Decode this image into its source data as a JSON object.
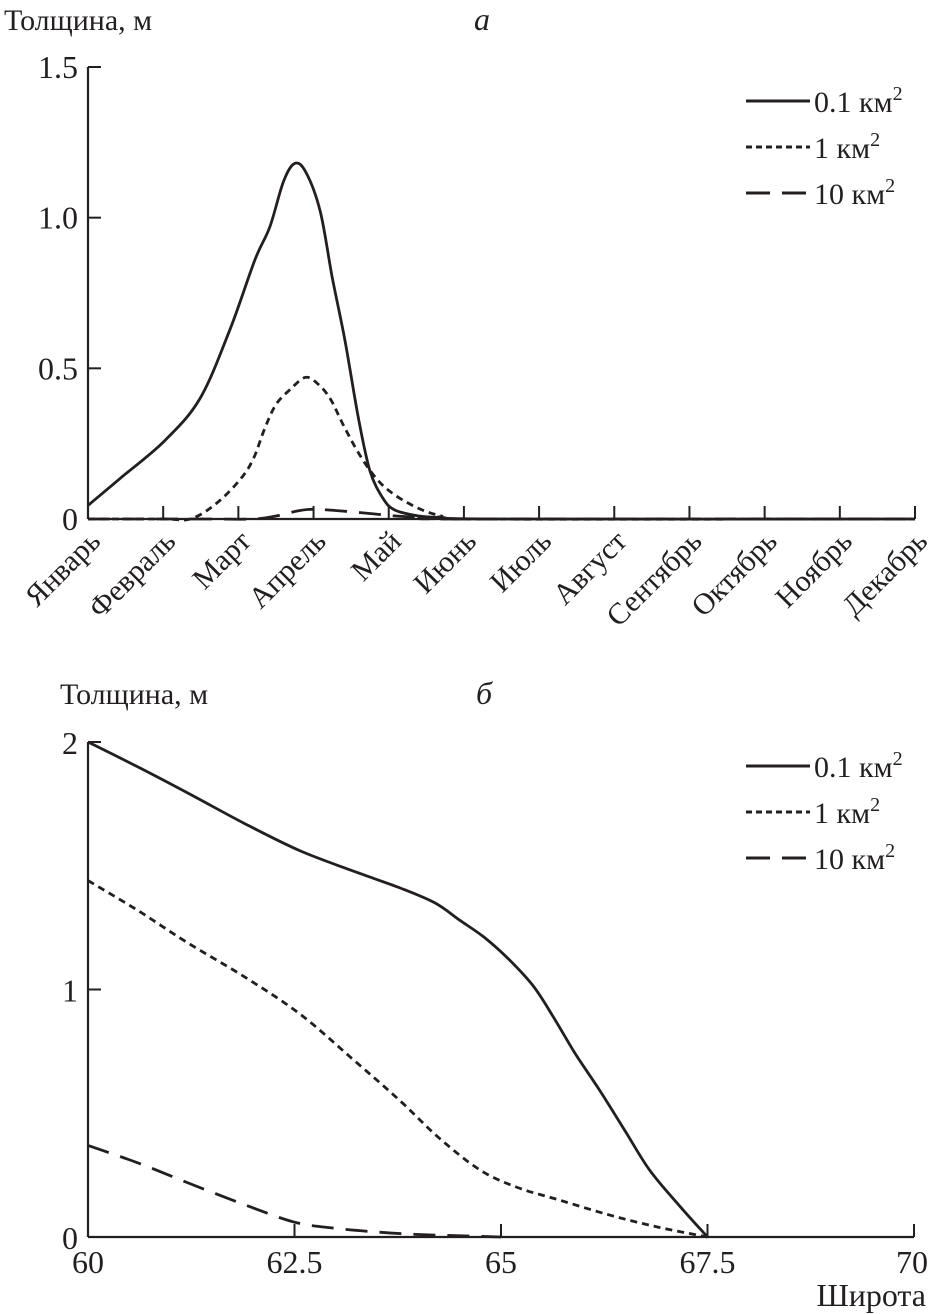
{
  "colors": {
    "ink": "#231f20",
    "background": "#ffffff"
  },
  "chart_data": [
    {
      "panel": "а",
      "type": "line",
      "ylabel": "Толщина, м",
      "xlabel": "",
      "ylim": [
        0,
        1.5
      ],
      "yticks": [
        0,
        0.5,
        1.0,
        1.5
      ],
      "ytick_labels": [
        "0",
        "0.5",
        "1.0",
        "1.5"
      ],
      "categories": [
        "Январь",
        "Февраль",
        "Март",
        "Апрель",
        "Май",
        "Июнь",
        "Июль",
        "Август",
        "Сентябрь",
        "Октябрь",
        "Ноябрь",
        "Декабрь"
      ],
      "x_units": "month index (0 = Январь)",
      "xlim": [
        0,
        11
      ],
      "legend_position": "top-right",
      "series": [
        {
          "name": "0.1 км",
          "superscript": "2",
          "style": "solid",
          "x": [
            0,
            0.43,
            1.02,
            1.49,
            1.89,
            2.22,
            2.42,
            2.6,
            2.75,
            2.9,
            3.09,
            3.25,
            3.42,
            3.6,
            3.75,
            3.92,
            4.08,
            4.4,
            4.7,
            5.5,
            11
          ],
          "y": [
            0.045,
            0.135,
            0.26,
            0.4,
            0.63,
            0.86,
            0.97,
            1.12,
            1.18,
            1.15,
            1.02,
            0.8,
            0.59,
            0.33,
            0.16,
            0.07,
            0.03,
            0.01,
            0.005,
            0,
            0
          ]
        },
        {
          "name": "1 км",
          "superscript": "2",
          "style": "dotted",
          "x": [
            0,
            1.0,
            1.36,
            1.7,
            2.02,
            2.2,
            2.35,
            2.5,
            2.69,
            2.89,
            3.05,
            3.22,
            3.4,
            3.62,
            3.85,
            4.08,
            4.4,
            4.7,
            5.0,
            11
          ],
          "y": [
            0,
            0,
            0,
            0.05,
            0.13,
            0.2,
            0.3,
            0.38,
            0.43,
            0.47,
            0.45,
            0.4,
            0.31,
            0.21,
            0.13,
            0.08,
            0.035,
            0.01,
            0,
            0
          ]
        },
        {
          "name": "10 км",
          "superscript": "2",
          "style": "dashed",
          "x": [
            0,
            1.5,
            2.2,
            2.5,
            2.75,
            2.95,
            3.2,
            3.5,
            3.8,
            4.1,
            4.5,
            5.0,
            11
          ],
          "y": [
            0,
            0,
            0.0,
            0.01,
            0.025,
            0.032,
            0.03,
            0.024,
            0.017,
            0.01,
            0.004,
            0,
            0
          ]
        }
      ]
    },
    {
      "panel": "б",
      "type": "line",
      "ylabel": "Толщина, м",
      "xlabel": "Широта",
      "ylim": [
        0,
        2
      ],
      "yticks": [
        0,
        1,
        2
      ],
      "ytick_labels": [
        "0",
        "1",
        "2"
      ],
      "xlim": [
        60,
        70
      ],
      "xticks": [
        60,
        62.5,
        65,
        67.5,
        70
      ],
      "xtick_labels": [
        "60",
        "62.5",
        "65",
        "67.5",
        "70"
      ],
      "legend_position": "top-right",
      "series": [
        {
          "name": "0.1 км",
          "superscript": "2",
          "style": "solid",
          "x": [
            60,
            60.6,
            61.23,
            61.9,
            62.57,
            63.2,
            63.78,
            64.2,
            64.5,
            64.8,
            65.1,
            65.4,
            65.65,
            65.9,
            66.2,
            66.5,
            66.8,
            67.15,
            67.5,
            70
          ],
          "y": [
            2.0,
            1.9,
            1.79,
            1.67,
            1.56,
            1.48,
            1.41,
            1.35,
            1.28,
            1.21,
            1.12,
            1.01,
            0.88,
            0.74,
            0.59,
            0.43,
            0.27,
            0.13,
            0,
            0
          ]
        },
        {
          "name": "1 км",
          "superscript": "2",
          "style": "dotted",
          "x": [
            60,
            60.6,
            61.2,
            61.9,
            62.57,
            63.2,
            63.78,
            64.25,
            64.75,
            65.2,
            65.7,
            66.3,
            66.9,
            67.5,
            70
          ],
          "y": [
            1.44,
            1.32,
            1.19,
            1.05,
            0.9,
            0.72,
            0.55,
            0.4,
            0.27,
            0.2,
            0.15,
            0.09,
            0.04,
            0,
            0
          ]
        },
        {
          "name": "10 км",
          "superscript": "2",
          "style": "dashed",
          "x": [
            60,
            60.6,
            61.2,
            61.9,
            62.5,
            63.0,
            63.5,
            64.0,
            64.5,
            65.0,
            70
          ],
          "y": [
            0.37,
            0.3,
            0.22,
            0.13,
            0.06,
            0.035,
            0.02,
            0.01,
            0.005,
            0,
            0
          ]
        }
      ]
    }
  ],
  "panels": [
    {
      "letter": "а",
      "ylabel": "Толщина, м"
    },
    {
      "letter": "б",
      "ylabel": "Толщина, м",
      "xlabel": "Широта"
    }
  ]
}
